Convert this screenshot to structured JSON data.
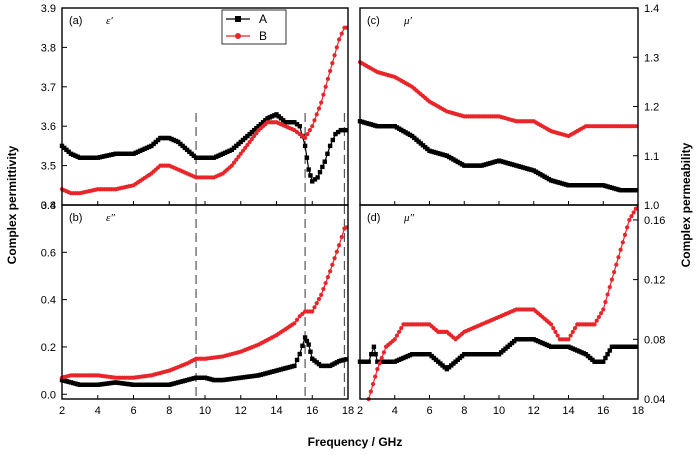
{
  "chart_data": {
    "type": "line",
    "xlabel": "Frequency / GHz",
    "ylabel_left": "Complex permittivity",
    "ylabel_right": "Complex permeability",
    "legend": {
      "placement": "top-center",
      "entries": [
        {
          "name": "A",
          "color": "#000000",
          "marker": "square"
        },
        {
          "name": "B",
          "color": "#e8262a",
          "marker": "circle"
        }
      ]
    },
    "x_ticks": [
      "2",
      "4",
      "6",
      "8",
      "10",
      "12",
      "14",
      "16",
      "18"
    ],
    "x_tick_values": [
      2,
      4,
      6,
      8,
      10,
      12,
      14,
      16,
      18
    ],
    "dashed_lines_x": [
      9.5,
      15.6,
      17.8
    ],
    "panels": [
      {
        "id": "a",
        "label": "(a)",
        "symbol": "ε′",
        "xlim": [
          2,
          18
        ],
        "ylim": [
          3.4,
          3.9
        ],
        "y_ticks": [
          "3.4",
          "3.5",
          "3.6",
          "3.7",
          "3.8",
          "3.9"
        ],
        "y_tick_values": [
          3.4,
          3.5,
          3.6,
          3.7,
          3.8,
          3.9
        ],
        "series": [
          {
            "name": "A",
            "points": [
              [
                2,
                3.55
              ],
              [
                2.5,
                3.53
              ],
              [
                3,
                3.52
              ],
              [
                4,
                3.52
              ],
              [
                5,
                3.53
              ],
              [
                6,
                3.53
              ],
              [
                7,
                3.55
              ],
              [
                7.5,
                3.57
              ],
              [
                8,
                3.57
              ],
              [
                8.5,
                3.56
              ],
              [
                9,
                3.54
              ],
              [
                9.5,
                3.52
              ],
              [
                10,
                3.52
              ],
              [
                10.5,
                3.52
              ],
              [
                11,
                3.53
              ],
              [
                11.5,
                3.54
              ],
              [
                12,
                3.56
              ],
              [
                12.5,
                3.58
              ],
              [
                13,
                3.6
              ],
              [
                13.5,
                3.62
              ],
              [
                14,
                3.63
              ],
              [
                14.5,
                3.61
              ],
              [
                15,
                3.61
              ],
              [
                15.3,
                3.6
              ],
              [
                15.6,
                3.55
              ],
              [
                15.8,
                3.49
              ],
              [
                16,
                3.46
              ],
              [
                16.3,
                3.47
              ],
              [
                16.7,
                3.51
              ],
              [
                17,
                3.55
              ],
              [
                17.3,
                3.58
              ],
              [
                17.6,
                3.59
              ],
              [
                18,
                3.59
              ]
            ]
          },
          {
            "name": "B",
            "points": [
              [
                2,
                3.44
              ],
              [
                2.5,
                3.43
              ],
              [
                3,
                3.43
              ],
              [
                4,
                3.44
              ],
              [
                5,
                3.44
              ],
              [
                6,
                3.45
              ],
              [
                7,
                3.48
              ],
              [
                7.5,
                3.5
              ],
              [
                8,
                3.5
              ],
              [
                8.5,
                3.49
              ],
              [
                9,
                3.48
              ],
              [
                9.5,
                3.47
              ],
              [
                10,
                3.47
              ],
              [
                10.5,
                3.47
              ],
              [
                11,
                3.48
              ],
              [
                11.5,
                3.5
              ],
              [
                12,
                3.53
              ],
              [
                12.5,
                3.56
              ],
              [
                13,
                3.59
              ],
              [
                13.5,
                3.61
              ],
              [
                14,
                3.61
              ],
              [
                14.5,
                3.6
              ],
              [
                15,
                3.59
              ],
              [
                15.3,
                3.58
              ],
              [
                15.6,
                3.57
              ],
              [
                16,
                3.6
              ],
              [
                16.5,
                3.66
              ],
              [
                17,
                3.74
              ],
              [
                17.5,
                3.82
              ],
              [
                17.8,
                3.85
              ],
              [
                18,
                3.85
              ]
            ]
          }
        ]
      },
      {
        "id": "b",
        "label": "(b)",
        "symbol": "ε″",
        "xlim": [
          2,
          18
        ],
        "ylim": [
          -0.02,
          0.8
        ],
        "y_ticks": [
          "0.0",
          "0.2",
          "0.4",
          "0.6",
          "0.8"
        ],
        "y_tick_values": [
          0.0,
          0.2,
          0.4,
          0.6,
          0.8
        ],
        "series": [
          {
            "name": "A",
            "points": [
              [
                2,
                0.06
              ],
              [
                2.5,
                0.05
              ],
              [
                3,
                0.04
              ],
              [
                4,
                0.04
              ],
              [
                5,
                0.05
              ],
              [
                6,
                0.04
              ],
              [
                7,
                0.04
              ],
              [
                8,
                0.04
              ],
              [
                8.5,
                0.05
              ],
              [
                9,
                0.06
              ],
              [
                9.5,
                0.07
              ],
              [
                10,
                0.07
              ],
              [
                10.5,
                0.06
              ],
              [
                11,
                0.06
              ],
              [
                12,
                0.07
              ],
              [
                13,
                0.08
              ],
              [
                14,
                0.1
              ],
              [
                15,
                0.12
              ],
              [
                15.3,
                0.17
              ],
              [
                15.6,
                0.24
              ],
              [
                15.8,
                0.21
              ],
              [
                16,
                0.15
              ],
              [
                16.5,
                0.12
              ],
              [
                17,
                0.12
              ],
              [
                17.5,
                0.14
              ],
              [
                18,
                0.15
              ]
            ]
          },
          {
            "name": "B",
            "points": [
              [
                2,
                0.07
              ],
              [
                2.5,
                0.08
              ],
              [
                3,
                0.08
              ],
              [
                4,
                0.08
              ],
              [
                5,
                0.07
              ],
              [
                6,
                0.07
              ],
              [
                7,
                0.08
              ],
              [
                8,
                0.1
              ],
              [
                9,
                0.13
              ],
              [
                9.5,
                0.15
              ],
              [
                10,
                0.15
              ],
              [
                11,
                0.16
              ],
              [
                12,
                0.18
              ],
              [
                13,
                0.21
              ],
              [
                14,
                0.25
              ],
              [
                15,
                0.3
              ],
              [
                15.3,
                0.33
              ],
              [
                15.6,
                0.35
              ],
              [
                16,
                0.35
              ],
              [
                16.5,
                0.42
              ],
              [
                17,
                0.52
              ],
              [
                17.5,
                0.63
              ],
              [
                17.8,
                0.7
              ],
              [
                18,
                0.71
              ]
            ]
          }
        ]
      },
      {
        "id": "c",
        "label": "(c)",
        "symbol": "μ′",
        "xlim": [
          2,
          18
        ],
        "ylim": [
          1.0,
          1.4
        ],
        "y_ticks": [
          "1.0",
          "1.1",
          "1.2",
          "1.3",
          "1.4"
        ],
        "y_tick_values": [
          1.0,
          1.1,
          1.2,
          1.3,
          1.4
        ],
        "series": [
          {
            "name": "A",
            "points": [
              [
                2,
                1.17
              ],
              [
                3,
                1.16
              ],
              [
                4,
                1.16
              ],
              [
                5,
                1.14
              ],
              [
                6,
                1.11
              ],
              [
                7,
                1.1
              ],
              [
                8,
                1.08
              ],
              [
                9,
                1.08
              ],
              [
                10,
                1.09
              ],
              [
                11,
                1.08
              ],
              [
                12,
                1.07
              ],
              [
                13,
                1.05
              ],
              [
                14,
                1.04
              ],
              [
                15,
                1.04
              ],
              [
                16,
                1.04
              ],
              [
                17,
                1.03
              ],
              [
                18,
                1.03
              ]
            ]
          },
          {
            "name": "B",
            "points": [
              [
                2,
                1.29
              ],
              [
                3,
                1.27
              ],
              [
                4,
                1.26
              ],
              [
                5,
                1.24
              ],
              [
                6,
                1.21
              ],
              [
                7,
                1.19
              ],
              [
                8,
                1.18
              ],
              [
                9,
                1.18
              ],
              [
                10,
                1.18
              ],
              [
                11,
                1.17
              ],
              [
                12,
                1.17
              ],
              [
                13,
                1.15
              ],
              [
                14,
                1.14
              ],
              [
                15,
                1.16
              ],
              [
                16,
                1.16
              ],
              [
                17,
                1.16
              ],
              [
                18,
                1.16
              ]
            ]
          }
        ]
      },
      {
        "id": "d",
        "label": "(d)",
        "symbol": "μ″",
        "xlim": [
          2,
          18
        ],
        "ylim": [
          0.04,
          0.17
        ],
        "y_ticks": [
          "0.04",
          "0.08",
          "0.12",
          "0.16"
        ],
        "y_tick_values": [
          0.04,
          0.08,
          0.12,
          0.16
        ],
        "series": [
          {
            "name": "A",
            "points": [
              [
                2,
                0.065
              ],
              [
                2.5,
                0.065
              ],
              [
                2.8,
                0.075
              ],
              [
                3,
                0.065
              ],
              [
                4,
                0.065
              ],
              [
                5,
                0.07
              ],
              [
                6,
                0.07
              ],
              [
                6.5,
                0.065
              ],
              [
                7,
                0.06
              ],
              [
                7.5,
                0.065
              ],
              [
                8,
                0.07
              ],
              [
                9,
                0.07
              ],
              [
                10,
                0.07
              ],
              [
                11,
                0.08
              ],
              [
                12,
                0.08
              ],
              [
                13,
                0.075
              ],
              [
                14,
                0.075
              ],
              [
                15,
                0.07
              ],
              [
                15.5,
                0.065
              ],
              [
                16,
                0.065
              ],
              [
                16.5,
                0.075
              ],
              [
                17,
                0.075
              ],
              [
                18,
                0.075
              ]
            ]
          },
          {
            "name": "B",
            "points": [
              [
                2.5,
                0.04
              ],
              [
                3,
                0.06
              ],
              [
                3.5,
                0.075
              ],
              [
                4,
                0.08
              ],
              [
                4.5,
                0.09
              ],
              [
                5,
                0.09
              ],
              [
                6,
                0.09
              ],
              [
                6.5,
                0.085
              ],
              [
                7,
                0.085
              ],
              [
                7.5,
                0.08
              ],
              [
                8,
                0.085
              ],
              [
                9,
                0.09
              ],
              [
                10,
                0.095
              ],
              [
                11,
                0.1
              ],
              [
                12,
                0.1
              ],
              [
                13,
                0.09
              ],
              [
                13.5,
                0.08
              ],
              [
                14,
                0.08
              ],
              [
                14.5,
                0.09
              ],
              [
                15,
                0.09
              ],
              [
                15.5,
                0.09
              ],
              [
                16,
                0.1
              ],
              [
                16.5,
                0.12
              ],
              [
                17,
                0.14
              ],
              [
                17.5,
                0.16
              ],
              [
                18,
                0.17
              ]
            ]
          }
        ]
      }
    ]
  }
}
